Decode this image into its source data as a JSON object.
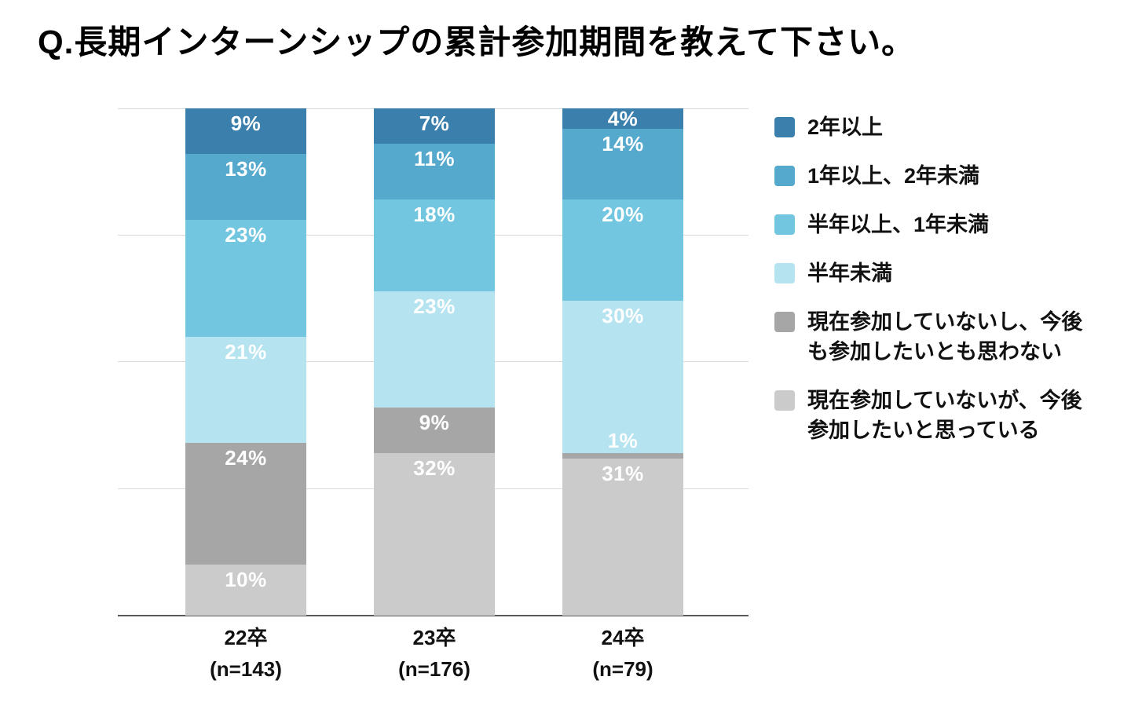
{
  "title": "Q.長期インターンシップの累計参加期間を教えて下さい。",
  "chart_data": {
    "type": "bar",
    "subtype": "stacked-percentage-column",
    "title": "Q.長期インターンシップの累計参加期間を教えて下さい。",
    "categories": [
      "22卒",
      "23卒",
      "24卒"
    ],
    "category_sublabels": [
      "(n=143)",
      "(n=176)",
      "(n=79)"
    ],
    "series": [
      {
        "name": "2年以上",
        "color": "#3B7FAD",
        "values": [
          9,
          7,
          4
        ]
      },
      {
        "name": "1年以上、2年未満",
        "color": "#55A9CD",
        "values": [
          13,
          11,
          14
        ]
      },
      {
        "name": "半年以上、1年未満",
        "color": "#73C6DF",
        "values": [
          23,
          18,
          20
        ]
      },
      {
        "name": "半年未満",
        "color": "#B6E3F0",
        "values": [
          21,
          23,
          30
        ]
      },
      {
        "name": "現在参加していないし、今後も参加したいとも思わない",
        "color": "#A6A6A6",
        "values": [
          24,
          9,
          1
        ]
      },
      {
        "name": "現在参加していないが、今後参加したいと思っている",
        "color": "#CBCBCB",
        "values": [
          10,
          32,
          31
        ]
      }
    ],
    "value_suffix": "%",
    "value_label_color": "#FFFFFF",
    "xlabel": "",
    "ylabel": "",
    "ylim": [
      0,
      100
    ],
    "gridlines": [
      0,
      25,
      50,
      75,
      100
    ],
    "grid": true,
    "legend_position": "right"
  }
}
